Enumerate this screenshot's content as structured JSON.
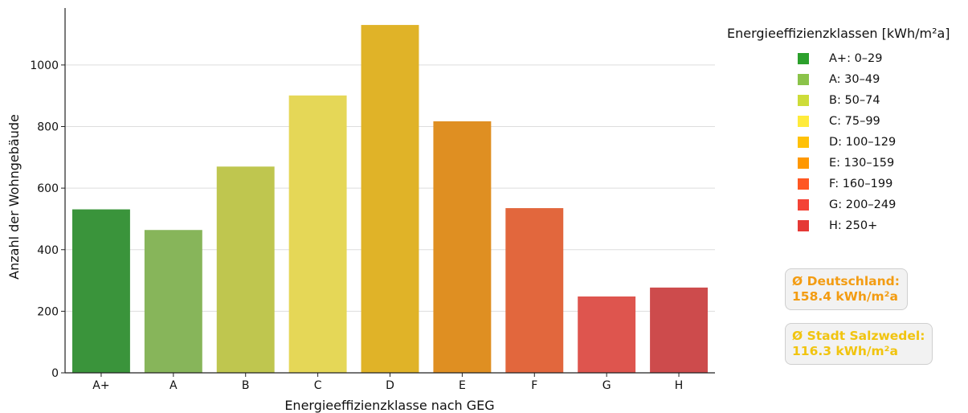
{
  "chart_data": {
    "type": "bar",
    "xlabel": "Energieeffizienzklasse nach GEG",
    "ylabel": "Anzahl der Wohngebäude",
    "ylim": [
      0,
      1185
    ],
    "yticks": [
      0,
      200,
      400,
      600,
      800,
      1000
    ],
    "grid": "horizontal",
    "categories": [
      "A+",
      "A",
      "B",
      "C",
      "D",
      "E",
      "F",
      "G",
      "H"
    ],
    "values": [
      531,
      464,
      670,
      901,
      1130,
      817,
      535,
      248,
      277
    ],
    "colors": [
      "#3a943b",
      "#87b55a",
      "#bfc64f",
      "#e5d757",
      "#e0b328",
      "#df8f22",
      "#e2673d",
      "#de554e",
      "#cd4b4c"
    ],
    "legend": {
      "title": "Energieeffizienzklassen [kWh/m²a]",
      "position": "right",
      "items": [
        {
          "label": "A+: 0–29",
          "color": "#2ca02c"
        },
        {
          "label": "A: 30–49",
          "color": "#8bc34a"
        },
        {
          "label": "B: 50–74",
          "color": "#cddc39"
        },
        {
          "label": "C: 75–99",
          "color": "#ffeb3b"
        },
        {
          "label": "D: 100–129",
          "color": "#ffc107"
        },
        {
          "label": "E: 130–159",
          "color": "#ff9800"
        },
        {
          "label": "F: 160–199",
          "color": "#ff5722"
        },
        {
          "label": "G: 200–249",
          "color": "#f44336"
        },
        {
          "label": "H: 250+",
          "color": "#e53935"
        }
      ]
    },
    "annotations": [
      {
        "line1": "Ø Deutschland:",
        "line2": "158.4 kWh/m²a",
        "color": "#f39c12"
      },
      {
        "line1": "Ø Stadt Salzwedel:",
        "line2": "116.3 kWh/m²a",
        "color": "#f1c40f"
      }
    ]
  }
}
